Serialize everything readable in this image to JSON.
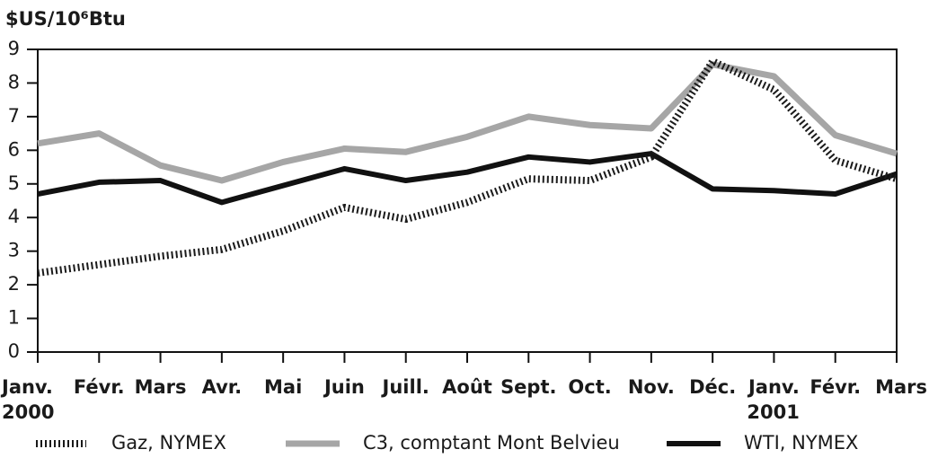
{
  "chart_data": {
    "type": "line",
    "y_label": "$US/10⁶Btu",
    "categories": [
      "Janv.",
      "Févr.",
      "Mars",
      "Avr.",
      "Mai",
      "Juin",
      "Juill.",
      "Août",
      "Sept.",
      "Oct.",
      "Nov.",
      "Déc.",
      "Janv.",
      "Févr.",
      "Mars"
    ],
    "years": [
      "2000",
      null,
      null,
      null,
      null,
      null,
      null,
      null,
      null,
      null,
      null,
      null,
      "2001",
      null,
      null
    ],
    "series": [
      {
        "name": "Gaz, NYMEX",
        "color": "#1a1a1a",
        "style": "dotted",
        "values": [
          2.35,
          2.6,
          2.85,
          3.05,
          3.6,
          4.3,
          3.95,
          4.45,
          5.15,
          5.1,
          5.8,
          8.65,
          7.8,
          5.7,
          5.15
        ]
      },
      {
        "name": "C3, comptant Mont Belvieu",
        "color": "#a6a6a6",
        "style": "solid",
        "values": [
          6.2,
          6.5,
          5.55,
          5.1,
          5.65,
          6.05,
          5.95,
          6.4,
          7.0,
          6.75,
          6.65,
          8.55,
          8.2,
          6.45,
          5.9
        ]
      },
      {
        "name": "WTI, NYMEX",
        "color": "#111111",
        "style": "solid",
        "values": [
          4.7,
          5.05,
          5.1,
          4.45,
          4.95,
          5.45,
          5.1,
          5.35,
          5.8,
          5.65,
          5.9,
          4.85,
          4.8,
          4.7,
          5.3
        ]
      }
    ],
    "ylim": [
      0,
      9
    ],
    "yticks": [
      0,
      1,
      2,
      3,
      4,
      5,
      6,
      7,
      8,
      9
    ],
    "grid": false,
    "legend": "bottom"
  }
}
